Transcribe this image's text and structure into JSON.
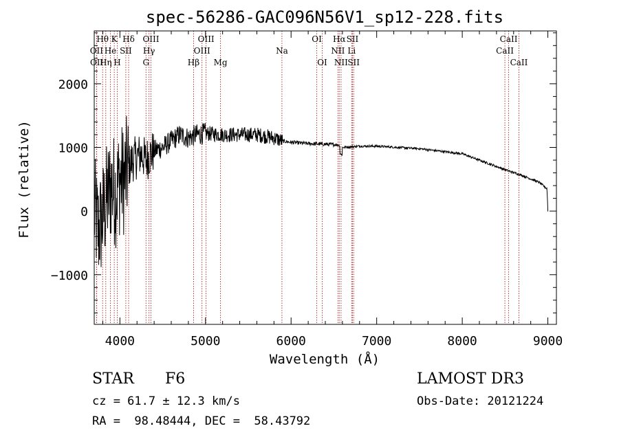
{
  "chart_data": {
    "type": "line",
    "title": "spec-56286-GAC096N56V1_sp12-228.fits",
    "xlabel": "Wavelength (Å)",
    "ylabel": "Flux (relative)",
    "xlim": [
      3700,
      9100
    ],
    "ylim": [
      -1780,
      2830
    ],
    "xticks": [
      4000,
      5000,
      6000,
      7000,
      8000,
      9000
    ],
    "xtick_labels": [
      "4000",
      "5000",
      "6000",
      "7000",
      "8000",
      "9000"
    ],
    "yticks": [
      -1000,
      0,
      1000,
      2000
    ],
    "ytick_labels": [
      "−1000",
      "0",
      "1000",
      "2000"
    ],
    "series": [
      {
        "name": "spectrum",
        "color": "#000000",
        "x": [
          3700,
          3750,
          3800,
          3850,
          3900,
          3950,
          4000,
          4050,
          4100,
          4150,
          4200,
          4250,
          4300,
          4350,
          4400,
          4500,
          4600,
          4700,
          4800,
          4900,
          5000,
          5200,
          5400,
          5600,
          5800,
          5900,
          6000,
          6200,
          6400,
          6550,
          6600,
          6800,
          7000,
          7500,
          8000,
          8500,
          8700,
          8900,
          8990,
          9000
        ],
        "y": [
          0,
          -300,
          -100,
          200,
          400,
          300,
          500,
          500,
          700,
          800,
          850,
          900,
          800,
          880,
          950,
          1000,
          1100,
          1200,
          1150,
          1200,
          1220,
          1200,
          1200,
          1200,
          1150,
          1100,
          1080,
          1060,
          1050,
          1040,
          1000,
          1020,
          1020,
          980,
          900,
          650,
          560,
          450,
          350,
          0
        ]
      }
    ],
    "lines": [
      {
        "label": "Hθ",
        "x": 3798,
        "row": 1
      },
      {
        "label": "OII",
        "x": 3727,
        "row": 2
      },
      {
        "label": "OII",
        "x": 3729,
        "row": 3
      },
      {
        "label": "K",
        "x": 3934,
        "row": 1
      },
      {
        "label": "He",
        "x": 3889,
        "row": 2
      },
      {
        "label": "Hη",
        "x": 3835,
        "row": 3
      },
      {
        "label": "SII",
        "x": 4069,
        "row": 2
      },
      {
        "label": "H",
        "x": 3969,
        "row": 3
      },
      {
        "label": "Hδ",
        "x": 4102,
        "row": 1
      },
      {
        "label": "OIII",
        "x": 4363,
        "row": 1
      },
      {
        "label": "Hγ",
        "x": 4340,
        "row": 2
      },
      {
        "label": "G",
        "x": 4305,
        "row": 3
      },
      {
        "label": "Hβ",
        "x": 4861,
        "row": 3
      },
      {
        "label": "OIII",
        "x": 5007,
        "row": 1
      },
      {
        "label": "OIII",
        "x": 4959,
        "row": 2
      },
      {
        "label": "Mg",
        "x": 5175,
        "row": 3
      },
      {
        "label": "Na",
        "x": 5893,
        "row": 2
      },
      {
        "label": "OI",
        "x": 6300,
        "row": 1
      },
      {
        "label": "OI",
        "x": 6364,
        "row": 3
      },
      {
        "label": "Hα",
        "x": 6563,
        "row": 1
      },
      {
        "label": "NII",
        "x": 6548,
        "row": 2
      },
      {
        "label": "NII",
        "x": 6584,
        "row": 3
      },
      {
        "label": "SII",
        "x": 6717,
        "row": 1
      },
      {
        "label": "Li",
        "x": 6708,
        "row": 2
      },
      {
        "label": "SII",
        "x": 6731,
        "row": 3
      },
      {
        "label": "CaII",
        "x": 8542,
        "row": 1
      },
      {
        "label": "CaII",
        "x": 8498,
        "row": 2
      },
      {
        "label": "CaII",
        "x": 8662,
        "row": 3
      }
    ],
    "line_marker_color": "#b22222"
  },
  "info": {
    "class_label": "STAR",
    "subclass_label": "F6",
    "survey": "LAMOST DR3",
    "cz": "cz = 61.7 ± 12.3 km/s",
    "obs_date": "Obs-Date: 20121224",
    "coords": "RA =  98.48444, DEC =  58.43792"
  }
}
